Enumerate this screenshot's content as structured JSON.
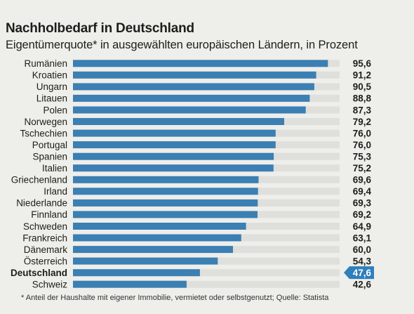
{
  "chart_data": {
    "type": "bar",
    "orientation": "horizontal",
    "title": "Nachholbedarf in Deutschland",
    "subtitle": "Eigentümerquote* in ausgewählten europäischen Ländern, in Prozent",
    "footnote": "* Anteil der Haushalte mit eigener Immobilie, vermietet oder selbstgenutzt; Quelle: Statista",
    "categories": [
      "Rumänien",
      "Kroatien",
      "Ungarn",
      "Litauen",
      "Polen",
      "Norwegen",
      "Tschechien",
      "Portugal",
      "Spanien",
      "Italien",
      "Griechenland",
      "Irland",
      "Niederlande",
      "Finnland",
      "Schweden",
      "Frankreich",
      "Dänemark",
      "Österreich",
      "Deutschland",
      "Schweiz"
    ],
    "values": [
      95.6,
      91.2,
      90.5,
      88.8,
      87.3,
      79.2,
      76.0,
      76.0,
      75.3,
      75.2,
      69.6,
      69.4,
      69.3,
      69.2,
      64.9,
      63.1,
      60.0,
      54.3,
      47.6,
      42.6
    ],
    "value_labels": [
      "95,6",
      "91,2",
      "90,5",
      "88,8",
      "87,3",
      "79,2",
      "76,0",
      "76,0",
      "75,3",
      "75,2",
      "69,6",
      "69,4",
      "69,3",
      "69,2",
      "64,9",
      "63,1",
      "60,0",
      "54,3",
      "47,6",
      "42,6"
    ],
    "highlight": "Deutschland",
    "xlim": [
      0,
      100
    ],
    "grid": false,
    "legend": "none",
    "colors": {
      "bar": "#3b7fb3",
      "highlight_badge": "#2f7fbb",
      "track": "#d3d3cf",
      "text": "#1d1d1b"
    }
  }
}
